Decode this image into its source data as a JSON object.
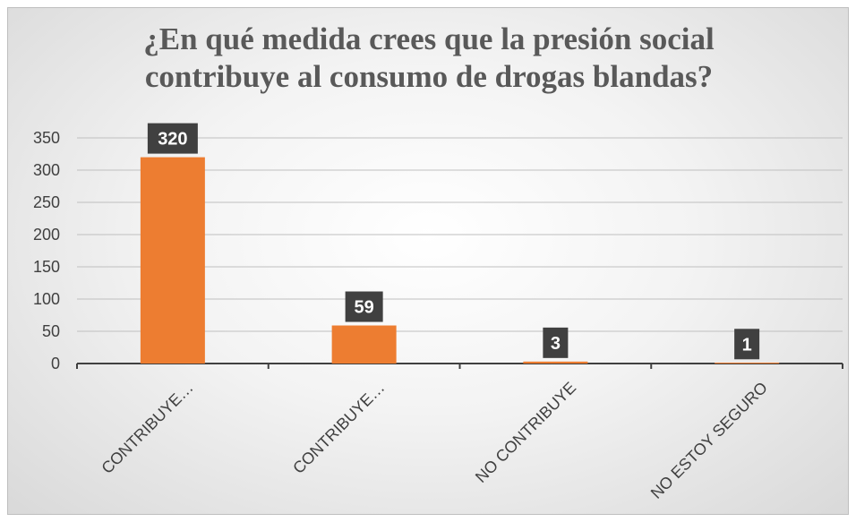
{
  "chart_data": {
    "type": "bar",
    "title_lines": [
      "¿En qué medida crees que la presión social",
      "contribuye al consumo de drogas blandas?"
    ],
    "categories": [
      "CONTRIBUYE…",
      "CONTRIBUYE…",
      "NO CONTRIBUYE",
      "NO ESTOY SEGURO"
    ],
    "values": [
      320,
      59,
      3,
      1
    ],
    "data_labels": [
      "320",
      "59",
      "3",
      "1"
    ],
    "y_ticks": [
      "0",
      "50",
      "100",
      "150",
      "200",
      "250",
      "300",
      "350"
    ],
    "ylim": [
      0,
      350
    ],
    "xlabel": "",
    "ylabel": "",
    "grid": true,
    "legend": "none",
    "colors": {
      "bar": "#ED7D31",
      "data_label_bg": "#404040",
      "data_label_text": "#ffffff",
      "gridline": "#bfbfbf",
      "axis": "#404040",
      "tick_text": "#404040",
      "title": "#595959"
    }
  }
}
